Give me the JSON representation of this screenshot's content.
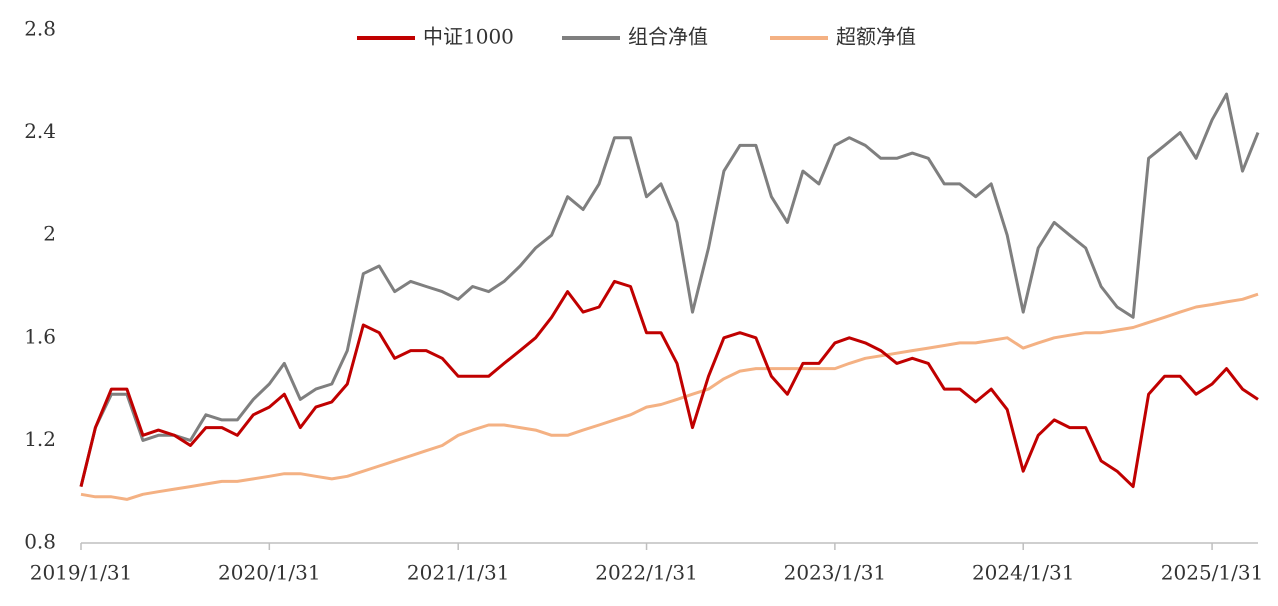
{
  "chart_data": {
    "type": "line",
    "x": [
      "2019/1/31",
      "2019/2/28",
      "2019/3/31",
      "2019/4/30",
      "2019/5/31",
      "2019/6/30",
      "2019/7/31",
      "2019/8/31",
      "2019/9/30",
      "2019/10/31",
      "2019/11/30",
      "2019/12/31",
      "2020/1/31",
      "2020/2/29",
      "2020/3/31",
      "2020/4/30",
      "2020/5/31",
      "2020/6/30",
      "2020/7/31",
      "2020/8/31",
      "2020/9/30",
      "2020/10/31",
      "2020/11/30",
      "2020/12/31",
      "2021/1/31",
      "2021/2/28",
      "2021/3/31",
      "2021/4/30",
      "2021/5/31",
      "2021/6/30",
      "2021/7/31",
      "2021/8/31",
      "2021/9/30",
      "2021/10/31",
      "2021/11/30",
      "2021/12/31",
      "2022/1/31",
      "2022/2/28",
      "2022/3/31",
      "2022/4/30",
      "2022/5/31",
      "2022/6/30",
      "2022/7/31",
      "2022/8/31",
      "2022/9/30",
      "2022/10/31",
      "2022/11/30",
      "2022/12/31",
      "2023/1/31",
      "2023/2/28",
      "2023/3/31",
      "2023/4/30",
      "2023/5/31",
      "2023/6/30",
      "2023/7/31",
      "2023/8/31",
      "2023/9/30",
      "2023/10/31",
      "2023/11/30",
      "2023/12/31",
      "2024/1/31",
      "2024/2/29",
      "2024/3/31",
      "2024/4/30",
      "2024/5/31",
      "2024/6/30",
      "2024/7/31",
      "2024/8/31",
      "2024/9/30",
      "2024/10/31",
      "2024/11/30",
      "2024/12/31",
      "2025/1/31",
      "2025/2/28",
      "2025/3/31",
      "2025/4/30"
    ],
    "series": [
      {
        "name": "中证1000",
        "color": "#c00000",
        "values": [
          1.02,
          1.25,
          1.4,
          1.4,
          1.22,
          1.24,
          1.22,
          1.18,
          1.25,
          1.25,
          1.22,
          1.3,
          1.33,
          1.38,
          1.25,
          1.33,
          1.35,
          1.42,
          1.65,
          1.62,
          1.52,
          1.55,
          1.55,
          1.52,
          1.45,
          1.45,
          1.45,
          1.5,
          1.55,
          1.6,
          1.68,
          1.78,
          1.7,
          1.72,
          1.82,
          1.8,
          1.62,
          1.62,
          1.5,
          1.25,
          1.45,
          1.6,
          1.62,
          1.6,
          1.45,
          1.38,
          1.5,
          1.5,
          1.58,
          1.6,
          1.58,
          1.55,
          1.5,
          1.52,
          1.5,
          1.4,
          1.4,
          1.35,
          1.4,
          1.32,
          1.08,
          1.22,
          1.28,
          1.25,
          1.25,
          1.12,
          1.08,
          1.02,
          1.38,
          1.45,
          1.45,
          1.38,
          1.42,
          1.48,
          1.4,
          1.36
        ]
      },
      {
        "name": "组合净值",
        "color": "#7f7f7f",
        "values": [
          1.02,
          1.25,
          1.38,
          1.38,
          1.2,
          1.22,
          1.22,
          1.2,
          1.3,
          1.28,
          1.28,
          1.36,
          1.42,
          1.5,
          1.36,
          1.4,
          1.42,
          1.55,
          1.85,
          1.88,
          1.78,
          1.82,
          1.8,
          1.78,
          1.75,
          1.8,
          1.78,
          1.82,
          1.88,
          1.95,
          2.0,
          2.15,
          2.1,
          2.2,
          2.38,
          2.38,
          2.15,
          2.2,
          2.05,
          1.7,
          1.95,
          2.25,
          2.35,
          2.35,
          2.15,
          2.05,
          2.25,
          2.2,
          2.35,
          2.38,
          2.35,
          2.3,
          2.3,
          2.32,
          2.3,
          2.2,
          2.2,
          2.15,
          2.2,
          2.0,
          1.7,
          1.95,
          2.05,
          2.0,
          1.95,
          1.8,
          1.72,
          1.68,
          2.3,
          2.35,
          2.4,
          2.3,
          2.45,
          2.55,
          2.25,
          2.4
        ]
      },
      {
        "name": "超额净值",
        "color": "#f4b183",
        "values": [
          0.99,
          0.98,
          0.98,
          0.97,
          0.99,
          1.0,
          1.01,
          1.02,
          1.03,
          1.04,
          1.04,
          1.05,
          1.06,
          1.07,
          1.07,
          1.06,
          1.05,
          1.06,
          1.08,
          1.1,
          1.12,
          1.14,
          1.16,
          1.18,
          1.22,
          1.24,
          1.26,
          1.26,
          1.25,
          1.24,
          1.22,
          1.22,
          1.24,
          1.26,
          1.28,
          1.3,
          1.33,
          1.34,
          1.36,
          1.38,
          1.4,
          1.44,
          1.47,
          1.48,
          1.48,
          1.48,
          1.48,
          1.48,
          1.48,
          1.5,
          1.52,
          1.53,
          1.54,
          1.55,
          1.56,
          1.57,
          1.58,
          1.58,
          1.59,
          1.6,
          1.56,
          1.58,
          1.6,
          1.61,
          1.62,
          1.62,
          1.63,
          1.64,
          1.66,
          1.68,
          1.7,
          1.72,
          1.73,
          1.74,
          1.75,
          1.77
        ]
      }
    ],
    "xlim": [
      "2019/1/31",
      "2025/4/30"
    ],
    "xticks": [
      "2019/1/31",
      "2020/1/31",
      "2021/1/31",
      "2022/1/31",
      "2023/1/31",
      "2024/1/31",
      "2025/1/31"
    ],
    "ylim": [
      0.8,
      2.8
    ],
    "yticks": [
      0.8,
      1.2,
      1.6,
      2,
      2.4,
      2.8
    ],
    "grid": false,
    "legend": "top"
  }
}
